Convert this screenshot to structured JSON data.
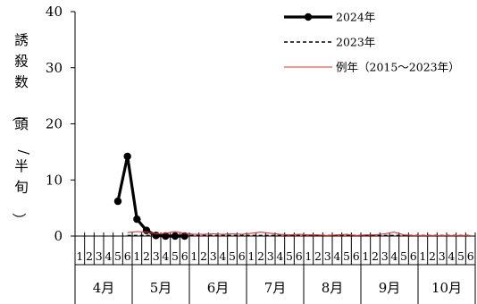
{
  "chart_data": {
    "type": "line",
    "ylabel": "誘殺数（頭/半旬）",
    "ylim": [
      0,
      40
    ],
    "yticks": [
      "0",
      "10",
      "20",
      "30",
      "40"
    ],
    "x_sub_labels": [
      "1",
      "2",
      "3",
      "4",
      "5",
      "6"
    ],
    "months": [
      "4月",
      "5月",
      "6月",
      "7月",
      "8月",
      "9月",
      "10月"
    ],
    "legend_position": "top-right",
    "series": [
      {
        "name": "2024年",
        "style": "solid-thick-markers",
        "color": "#000000",
        "start_index": 4,
        "values": [
          6.2,
          14.2,
          3.0,
          1.0,
          0.1,
          0.0,
          0.0,
          0.0
        ]
      },
      {
        "name": "2023年",
        "style": "dashed",
        "color": "#000000",
        "start_index": 5,
        "values": [
          0.1,
          0.1,
          0.1,
          0.1,
          0.1,
          0.1,
          0.1,
          0.1,
          0.1,
          0.1,
          0.1,
          0.1,
          0.1,
          0.1,
          0.1,
          0.1,
          0.1,
          0.1,
          0.1,
          0.1,
          0.1,
          0.1,
          0.1,
          0.1,
          0.1,
          0.1,
          0.1,
          0.1,
          0.1,
          0.1,
          0.1,
          0.1,
          0.1,
          0.1,
          0.1,
          0.1,
          0.1
        ]
      },
      {
        "name": "例年（2015～2023年）",
        "style": "solid-thin",
        "color": "#e03030",
        "start_index": 5,
        "values": [
          0.6,
          0.8,
          0.7,
          0.4,
          0.5,
          0.8,
          0.5,
          0.3,
          0.3,
          0.4,
          0.3,
          0.4,
          0.3,
          0.5,
          0.7,
          0.5,
          0.3,
          0.2,
          0.3,
          0.2,
          0.2,
          0.1,
          0.2,
          0.3,
          0.1,
          0.2,
          0.2,
          0.4,
          0.7,
          0.2,
          0.1,
          0.1,
          0.1,
          0.1,
          0.1,
          0.1,
          0.1
        ]
      }
    ]
  }
}
